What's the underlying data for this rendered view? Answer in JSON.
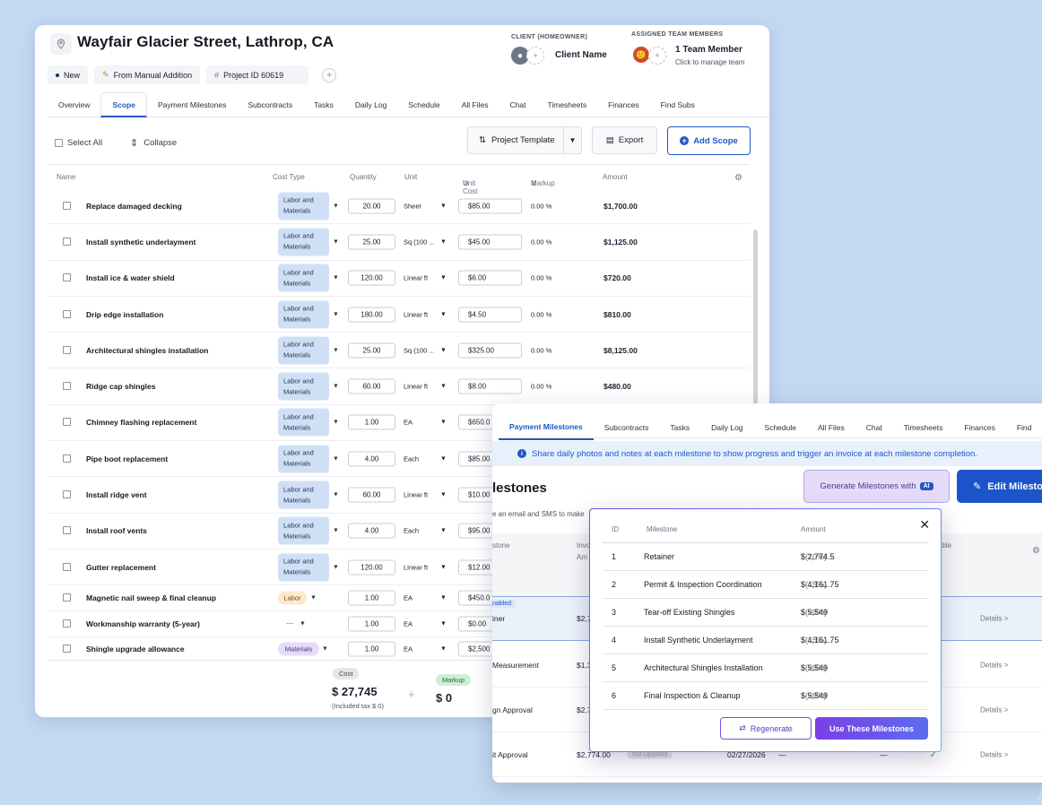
{
  "project": {
    "title": "Wayfair Glacier Street, Lathrop, CA",
    "status": "New",
    "source": "From Manual Addition",
    "project_id": "Project ID 60619"
  },
  "client": {
    "label": "CLIENT (HOMEOWNER)",
    "name": "Client Name"
  },
  "team": {
    "label": "ASSIGNED TEAM MEMBERS",
    "count": "1 Team Member",
    "action": "Click to manage team"
  },
  "tabs": [
    "Overview",
    "Scope",
    "Payment Milestones",
    "Subcontracts",
    "Tasks",
    "Daily Log",
    "Schedule",
    "All Files",
    "Chat",
    "Timesheets",
    "Finances",
    "Find Subs"
  ],
  "active_tab": "Scope",
  "toolbar": {
    "select_all": "Select All",
    "collapse": "Collapse",
    "template": "Project Template",
    "export": "Export",
    "add_scope": "Add Scope"
  },
  "columns": {
    "name": "Name",
    "cost_type": "Cost Type",
    "quantity": "Quantity",
    "unit": "Unit",
    "unit_cost": "Unit Cost",
    "markup": "Markup",
    "amount": "Amount"
  },
  "scope_items": [
    {
      "name": "Replace damaged decking",
      "cost_type": [
        "Labor and",
        "Materials"
      ],
      "qty": "20.00",
      "unit": "Sheet",
      "unit_cost": "$85.00",
      "markup": "0.00 %",
      "amount": "$1,700.00"
    },
    {
      "name": "Install synthetic underlayment",
      "cost_type": [
        "Labor and",
        "Materials"
      ],
      "qty": "25.00",
      "unit": "Sq (100 ...",
      "unit_cost": "$45.00",
      "markup": "0.00 %",
      "amount": "$1,125.00"
    },
    {
      "name": "Install ice & water shield",
      "cost_type": [
        "Labor and",
        "Materials"
      ],
      "qty": "120.00",
      "unit": "Linear ft",
      "unit_cost": "$6.00",
      "markup": "0.00 %",
      "amount": "$720.00"
    },
    {
      "name": "Drip edge installation",
      "cost_type": [
        "Labor and",
        "Materials"
      ],
      "qty": "180.00",
      "unit": "Linear ft",
      "unit_cost": "$4.50",
      "markup": "0.00 %",
      "amount": "$810.00"
    },
    {
      "name": "Architectural shingles installation",
      "cost_type": [
        "Labor and",
        "Materials"
      ],
      "qty": "25.00",
      "unit": "Sq (100 ...",
      "unit_cost": "$325.00",
      "markup": "0.00 %",
      "amount": "$8,125.00"
    },
    {
      "name": "Ridge cap shingles",
      "cost_type": [
        "Labor and",
        "Materials"
      ],
      "qty": "60.00",
      "unit": "Linear ft",
      "unit_cost": "$8.00",
      "markup": "0.00 %",
      "amount": "$480.00"
    },
    {
      "name": "Chimney flashing replacement",
      "cost_type": [
        "Labor and",
        "Materials"
      ],
      "qty": "1.00",
      "unit": "EA",
      "unit_cost": "$650.0",
      "markup": "",
      "amount": ""
    },
    {
      "name": "Pipe boot replacement",
      "cost_type": [
        "Labor and",
        "Materials"
      ],
      "qty": "4.00",
      "unit": "Each",
      "unit_cost": "$85.00",
      "markup": "",
      "amount": ""
    },
    {
      "name": "Install ridge vent",
      "cost_type": [
        "Labor and",
        "Materials"
      ],
      "qty": "60.00",
      "unit": "Linear ft",
      "unit_cost": "$10.00",
      "markup": "",
      "amount": ""
    },
    {
      "name": "Install roof vents",
      "cost_type": [
        "Labor and",
        "Materials"
      ],
      "qty": "4.00",
      "unit": "Each",
      "unit_cost": "$95.00",
      "markup": "",
      "amount": ""
    },
    {
      "name": "Gutter replacement",
      "cost_type": [
        "Labor and",
        "Materials"
      ],
      "qty": "120.00",
      "unit": "Linear ft",
      "unit_cost": "$12.00",
      "markup": "",
      "amount": ""
    },
    {
      "name": "Magnetic nail sweep & final cleanup",
      "cost_type": [
        "Labor"
      ],
      "qty": "1.00",
      "unit": "EA",
      "unit_cost": "$450.0",
      "markup": "",
      "amount": ""
    },
    {
      "name": "Workmanship warranty (5-year)",
      "cost_type": [
        "---"
      ],
      "qty": "1.00",
      "unit": "EA",
      "unit_cost": "$0.00",
      "markup": "",
      "amount": ""
    },
    {
      "name": "Shingle upgrade allowance",
      "cost_type": [
        "Materials"
      ],
      "qty": "1.00",
      "unit": "EA",
      "unit_cost": "$2,500",
      "markup": "",
      "amount": ""
    }
  ],
  "summary": {
    "cost_label": "Cost",
    "cost": "$ 27,745",
    "tax": "(Included tax $ 0)",
    "plus": "+",
    "markup_label": "Markup",
    "markup": "$ 0"
  },
  "front_tabs": [
    "Payment Milestones",
    "Subcontracts",
    "Tasks",
    "Daily Log",
    "Schedule",
    "All Files",
    "Chat",
    "Timesheets",
    "Finances",
    "Find"
  ],
  "milestones_panel": {
    "info": "Share daily photos and notes at each milestone to show progress and trigger an invoice at each milestone completion.",
    "title": "lestones",
    "subtitle": "e an email and SMS to make",
    "generate": "Generate Milestones with",
    "ai": "AI",
    "edit": "Edit Milesto",
    "head_left": "stone",
    "head_inv": "Invo",
    "head_am": "Am",
    "head_able": "able",
    "enabled": "nabled",
    "not_updated": "Not Updated",
    "rows": [
      {
        "name": "iner",
        "value": "$2,7",
        "details": "Details >"
      },
      {
        "name": "Measurement",
        "value": "$1,3",
        "details": "Details >"
      },
      {
        "name": "gn Approval",
        "value": "$2,7",
        "details": "Details >"
      },
      {
        "name": "it Approval",
        "value": "$2,774.00",
        "date": "02/27/2026",
        "dash1": "—",
        "dash2": "—",
        "details": "Details >"
      }
    ]
  },
  "modal": {
    "head": {
      "id": "ID",
      "milestone": "Milestone",
      "amount": "Amount"
    },
    "rows": [
      {
        "id": "1",
        "name": "Retainer",
        "amount": "$ 2,774.5",
        "pct": "(10%)"
      },
      {
        "id": "2",
        "name": "Permit & Inspection Coordination",
        "amount": "$ 4,161.75",
        "pct": "(15%)"
      },
      {
        "id": "3",
        "name": "Tear-off Existing Shingles",
        "amount": "$ 5,549",
        "pct": "(20%)"
      },
      {
        "id": "4",
        "name": "Install Synthetic Underlayment",
        "amount": "$ 4,161.75",
        "pct": "(15%)"
      },
      {
        "id": "5",
        "name": "Architectural Shingles Installation",
        "amount": "$ 5,549",
        "pct": "(20%)"
      },
      {
        "id": "6",
        "name": "Final Inspection & Cleanup",
        "amount": "$ 5,549",
        "pct": "(20%)"
      }
    ],
    "regenerate": "Regenerate",
    "use": "Use These Milestones"
  },
  "colors": {
    "accent": "#2157c6",
    "ai_purple": "#7b3fe6",
    "badge_blue": "#cfe0f6"
  }
}
